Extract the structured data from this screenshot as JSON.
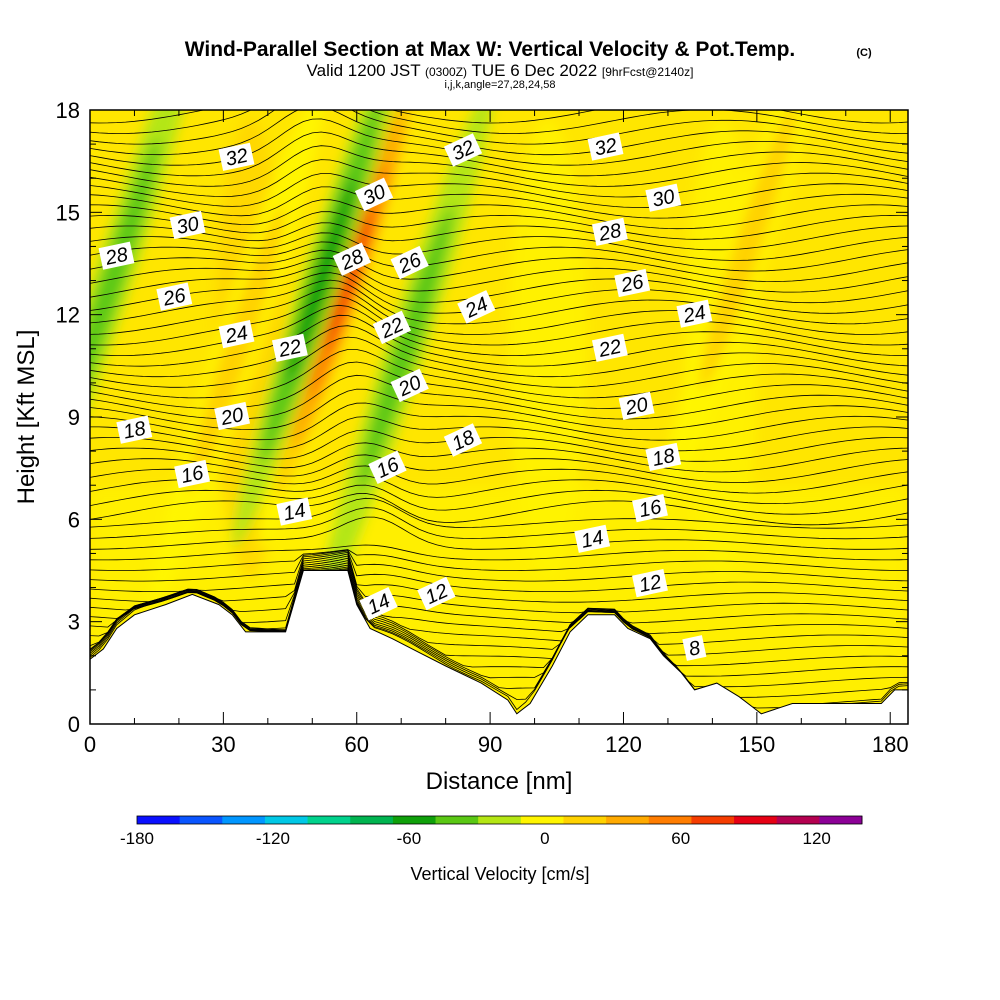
{
  "chart_data": {
    "type": "heatmap",
    "title": "Wind-Parallel Section at Max W: Vertical Velocity & Pot.Temp.",
    "title_mark": "(C)",
    "subtitle": {
      "valid": "Valid 1200 JST",
      "utc": "(0300Z)",
      "date": "TUE 6 Dec 2022",
      "fcst": "[9hrFcst@2140z]",
      "indices": "i,j,k,angle=27,28,24,58"
    },
    "xlabel": "Distance [nm]",
    "ylabel": "Height [Kft MSL]",
    "xlim": [
      0,
      184
    ],
    "ylim": [
      0,
      18
    ],
    "x_ticks": [
      "0",
      "30",
      "60",
      "90",
      "120",
      "150",
      "180"
    ],
    "y_ticks": [
      "0",
      "3",
      "6",
      "9",
      "12",
      "15",
      "18"
    ],
    "colorbar": {
      "label": "Vertical Velocity [cm/s]",
      "range": [
        -180,
        140
      ],
      "step": 20,
      "ticks": [
        "-180",
        "-120",
        "-60",
        "0",
        "60",
        "120"
      ],
      "colors": [
        "#0a10ff",
        "#0a55ff",
        "#0096ff",
        "#00c8e6",
        "#00d28c",
        "#00b450",
        "#0fa00a",
        "#5ac814",
        "#b4e614",
        "#fff500",
        "#ffd200",
        "#ffaa00",
        "#ff7d00",
        "#f53c00",
        "#e60014",
        "#b40050",
        "#8c0096"
      ]
    },
    "velocity_features": [
      {
        "kind": "updraft",
        "x": 58,
        "z": 13,
        "value": 100
      },
      {
        "kind": "updraft",
        "x": 33,
        "z": 11,
        "value": 40
      },
      {
        "kind": "updraft",
        "x": 148,
        "z": 14,
        "value": 40
      },
      {
        "kind": "downdraft",
        "x": 52,
        "z": 13,
        "value": -60
      },
      {
        "kind": "downdraft",
        "x": 71,
        "z": 11,
        "value": -30
      },
      {
        "kind": "downdraft",
        "x": 5,
        "z": 13,
        "value": -20
      }
    ],
    "terrain": [
      [
        0,
        1.9
      ],
      [
        3,
        2.2
      ],
      [
        6,
        2.8
      ],
      [
        10,
        3.2
      ],
      [
        17,
        3.5
      ],
      [
        23,
        3.8
      ],
      [
        29,
        3.5
      ],
      [
        32,
        3.2
      ],
      [
        35,
        2.7
      ],
      [
        44,
        2.7
      ],
      [
        48,
        4.5
      ],
      [
        58,
        4.5
      ],
      [
        60,
        3.5
      ],
      [
        63,
        2.8
      ],
      [
        68,
        2.5
      ],
      [
        74,
        2.1
      ],
      [
        80,
        1.7
      ],
      [
        88,
        1.2
      ],
      [
        94,
        0.7
      ],
      [
        96,
        0.3
      ],
      [
        99,
        0.6
      ],
      [
        104,
        1.7
      ],
      [
        108,
        2.7
      ],
      [
        112,
        3.2
      ],
      [
        118,
        3.2
      ],
      [
        121,
        2.8
      ],
      [
        126,
        2.5
      ],
      [
        129,
        2.0
      ],
      [
        133,
        1.5
      ],
      [
        136,
        1.0
      ],
      [
        141,
        1.2
      ],
      [
        146,
        0.8
      ],
      [
        149,
        0.5
      ],
      [
        151,
        0.3
      ],
      [
        158,
        0.6
      ],
      [
        167,
        0.6
      ],
      [
        178,
        0.6
      ],
      [
        181,
        1.0
      ],
      [
        184,
        1.0
      ]
    ],
    "theta_contours": [
      {
        "label": "8",
        "x": 136,
        "z": 2.2
      },
      {
        "label": "12",
        "x": 78,
        "z": 3.8
      },
      {
        "label": "12",
        "x": 126,
        "z": 4.1
      },
      {
        "label": "14",
        "x": 46,
        "z": 6.2
      },
      {
        "label": "14",
        "x": 65,
        "z": 3.5
      },
      {
        "label": "14",
        "x": 113,
        "z": 5.4
      },
      {
        "label": "16",
        "x": 23,
        "z": 7.3
      },
      {
        "label": "16",
        "x": 67,
        "z": 7.5
      },
      {
        "label": "16",
        "x": 126,
        "z": 6.3
      },
      {
        "label": "18",
        "x": 10,
        "z": 8.6
      },
      {
        "label": "18",
        "x": 84,
        "z": 8.3
      },
      {
        "label": "18",
        "x": 129,
        "z": 7.8
      },
      {
        "label": "20",
        "x": 32,
        "z": 9.0
      },
      {
        "label": "20",
        "x": 72,
        "z": 9.9
      },
      {
        "label": "20",
        "x": 123,
        "z": 9.3
      },
      {
        "label": "22",
        "x": 45,
        "z": 11.0
      },
      {
        "label": "22",
        "x": 68,
        "z": 11.6
      },
      {
        "label": "22",
        "x": 117,
        "z": 11.0
      },
      {
        "label": "24",
        "x": 33,
        "z": 11.4
      },
      {
        "label": "24",
        "x": 87,
        "z": 12.2
      },
      {
        "label": "24",
        "x": 136,
        "z": 12.0
      },
      {
        "label": "26",
        "x": 19,
        "z": 12.5
      },
      {
        "label": "26",
        "x": 72,
        "z": 13.5
      },
      {
        "label": "26",
        "x": 122,
        "z": 12.9
      },
      {
        "label": "28",
        "x": 6,
        "z": 13.7
      },
      {
        "label": "28",
        "x": 59,
        "z": 13.6
      },
      {
        "label": "28",
        "x": 117,
        "z": 14.4
      },
      {
        "label": "30",
        "x": 22,
        "z": 14.6
      },
      {
        "label": "30",
        "x": 64,
        "z": 15.5
      },
      {
        "label": "30",
        "x": 129,
        "z": 15.4
      },
      {
        "label": "32",
        "x": 33,
        "z": 16.6
      },
      {
        "label": "32",
        "x": 84,
        "z": 16.8
      },
      {
        "label": "32",
        "x": 116,
        "z": 16.9
      }
    ]
  }
}
